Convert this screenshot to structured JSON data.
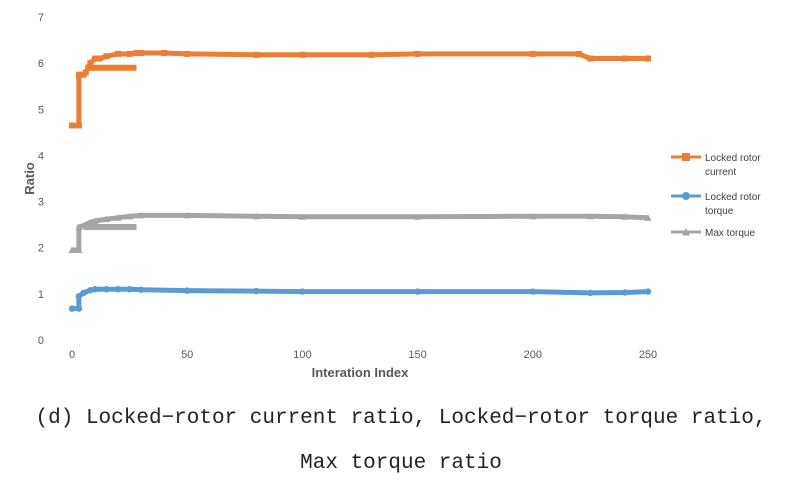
{
  "caption": {
    "line1": "(d) Locked−rotor current ratio, Locked−rotor torque ratio,",
    "line2": "Max torque ratio"
  },
  "chart_data": {
    "type": "line",
    "xlabel": "Interation Index",
    "ylabel": "Ratio",
    "xlim": [
      0,
      250
    ],
    "ylim": [
      0,
      7
    ],
    "xticks": [
      0,
      50,
      100,
      150,
      200,
      250
    ],
    "yticks": [
      0,
      1,
      2,
      3,
      4,
      5,
      6,
      7
    ],
    "grid": false,
    "legend_position": "right",
    "series": [
      {
        "name": "Locked rotor current",
        "color": "#ED7D31",
        "marker": "square",
        "x": [
          0,
          3,
          3,
          5,
          6,
          7,
          8,
          10,
          12,
          15,
          20,
          25,
          28,
          30,
          40,
          50,
          80,
          100,
          130,
          150,
          200,
          220,
          225,
          240,
          250
        ],
        "y": [
          4.65,
          4.65,
          5.75,
          5.75,
          5.8,
          5.9,
          6.0,
          6.1,
          6.1,
          6.15,
          6.2,
          6.2,
          6.22,
          6.22,
          6.22,
          6.2,
          6.18,
          6.18,
          6.18,
          6.2,
          6.2,
          6.2,
          6.1,
          6.1,
          6.1
        ],
        "lower_band": {
          "x": [
            6,
            28
          ],
          "y": [
            5.9,
            5.9
          ]
        }
      },
      {
        "name": "Locked rotor torque",
        "color": "#5B9BD5",
        "marker": "circle",
        "x": [
          0,
          3,
          3,
          5,
          8,
          10,
          15,
          20,
          25,
          30,
          50,
          80,
          100,
          150,
          200,
          225,
          240,
          250
        ],
        "y": [
          0.68,
          0.68,
          0.95,
          1.02,
          1.08,
          1.1,
          1.1,
          1.1,
          1.1,
          1.09,
          1.07,
          1.06,
          1.05,
          1.05,
          1.05,
          1.02,
          1.03,
          1.05
        ]
      },
      {
        "name": "Max torque",
        "color": "#A5A5A5",
        "marker": "triangle",
        "x": [
          0,
          3,
          3,
          5,
          8,
          10,
          15,
          20,
          25,
          30,
          50,
          80,
          100,
          150,
          200,
          225,
          240,
          250
        ],
        "y": [
          1.95,
          1.95,
          2.45,
          2.48,
          2.55,
          2.58,
          2.62,
          2.65,
          2.68,
          2.7,
          2.7,
          2.68,
          2.67,
          2.67,
          2.68,
          2.68,
          2.67,
          2.65
        ],
        "lower_band": {
          "x": [
            5,
            28
          ],
          "y": [
            2.45,
            2.45
          ]
        }
      }
    ]
  }
}
